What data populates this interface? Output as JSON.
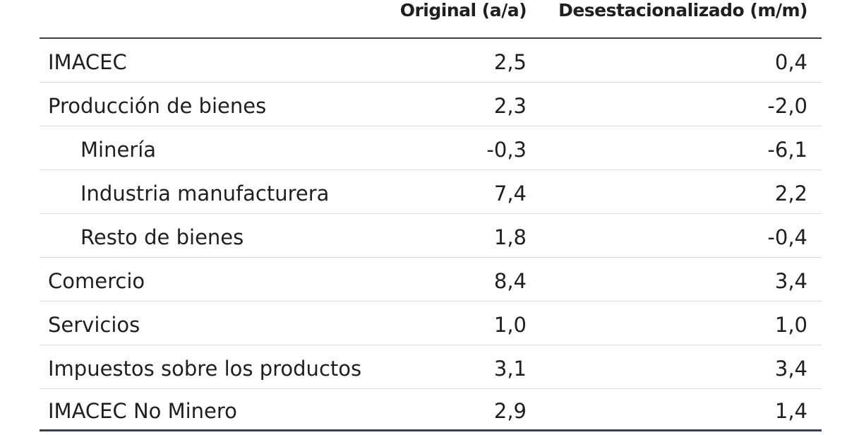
{
  "table": {
    "headers": {
      "label": "",
      "original": "Original (a/a)",
      "desestacionalizado": "Desestacionalizado (m/m)"
    },
    "rows": [
      {
        "label": "IMACEC",
        "original": "2,5",
        "desestacionalizado": "0,4",
        "indent": false
      },
      {
        "label": "Producción de bienes",
        "original": "2,3",
        "desestacionalizado": "-2,0",
        "indent": false
      },
      {
        "label": "Minería",
        "original": "-0,3",
        "desestacionalizado": "-6,1",
        "indent": true
      },
      {
        "label": "Industria manufacturera",
        "original": "7,4",
        "desestacionalizado": "2,2",
        "indent": true
      },
      {
        "label": "Resto de bienes",
        "original": "1,8",
        "desestacionalizado": "-0,4",
        "indent": true
      },
      {
        "label": "Comercio",
        "original": "8,4",
        "desestacionalizado": "3,4",
        "indent": false
      },
      {
        "label": "Servicios",
        "original": "1,0",
        "desestacionalizado": "1,0",
        "indent": false
      },
      {
        "label": "Impuestos sobre los productos",
        "original": "3,1",
        "desestacionalizado": "3,4",
        "indent": false
      },
      {
        "label": "IMACEC No Minero",
        "original": "2,9",
        "desestacionalizado": "1,4",
        "indent": false
      }
    ]
  },
  "colors": {
    "rule_dark": "#3a3f4b",
    "rule_light": "#dcdcdc",
    "text": "#1f1f1f"
  }
}
